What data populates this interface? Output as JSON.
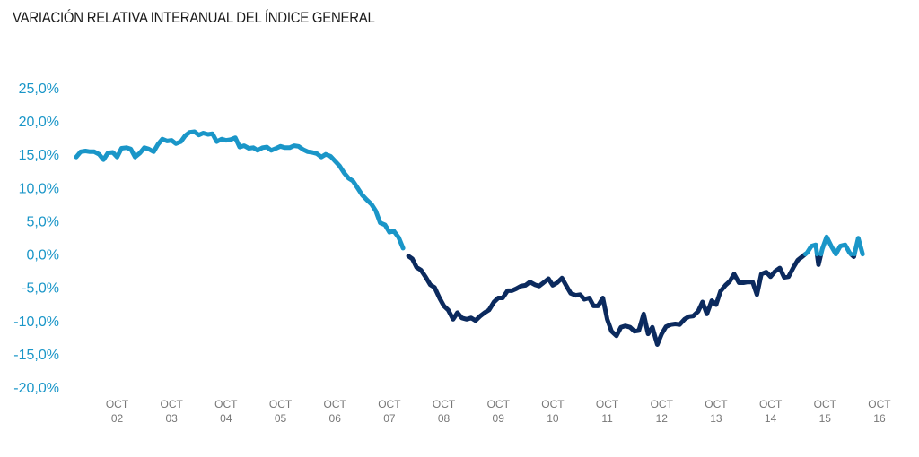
{
  "chart_data": {
    "type": "line",
    "title": "VARIACIÓN RELATIVA INTERANUAL DEL ÍNDICE GENERAL",
    "xlabel": "",
    "ylabel": "",
    "ylim": [
      -20,
      25
    ],
    "y_ticks": [
      25,
      20,
      15,
      10,
      5,
      0,
      -5,
      -10,
      -15,
      -20
    ],
    "y_tick_labels": [
      "25,0%",
      "20,0%",
      "15,0%",
      "10,0%",
      "5,0%",
      "0,0%",
      "-5,0%",
      "-10,0%",
      "-15,0%",
      "-20,0%"
    ],
    "x_ticks": [
      {
        "month": "OCT",
        "year": "02",
        "x": 2002.75
      },
      {
        "month": "OCT",
        "year": "03",
        "x": 2003.75
      },
      {
        "month": "OCT",
        "year": "04",
        "x": 2004.75
      },
      {
        "month": "OCT",
        "year": "05",
        "x": 2005.75
      },
      {
        "month": "OCT",
        "year": "06",
        "x": 2006.75
      },
      {
        "month": "OCT",
        "year": "07",
        "x": 2007.75
      },
      {
        "month": "OCT",
        "year": "08",
        "x": 2008.75
      },
      {
        "month": "OCT",
        "year": "09",
        "x": 2009.75
      },
      {
        "month": "OCT",
        "year": "10",
        "x": 2010.75
      },
      {
        "month": "OCT",
        "year": "11",
        "x": 2011.75
      },
      {
        "month": "OCT",
        "year": "12",
        "x": 2012.75
      },
      {
        "month": "OCT",
        "year": "13",
        "x": 2013.75
      },
      {
        "month": "OCT",
        "year": "14",
        "x": 2014.75
      },
      {
        "month": "OCT",
        "year": "15",
        "x": 2015.75
      },
      {
        "month": "OCT",
        "year": "16",
        "x": 2016.75
      }
    ],
    "xlim": [
      2002.0,
      2016.8
    ],
    "zero_line": true,
    "colors": {
      "positive": "#1a96c8",
      "negative": "#0b2a5e",
      "tick_text": "#1a96c8",
      "axis_text": "#777777",
      "zero_line": "#999999"
    },
    "series": [
      {
        "values": [
          [
            2002.0,
            14.6
          ],
          [
            2002.08,
            15.4
          ],
          [
            2002.17,
            15.5
          ],
          [
            2002.25,
            15.4
          ],
          [
            2002.33,
            15.4
          ],
          [
            2002.42,
            15.0
          ],
          [
            2002.5,
            14.2
          ],
          [
            2002.58,
            15.2
          ],
          [
            2002.67,
            15.3
          ],
          [
            2002.75,
            14.6
          ],
          [
            2002.83,
            15.9
          ],
          [
            2002.92,
            16.0
          ],
          [
            2003.0,
            15.8
          ],
          [
            2003.08,
            14.6
          ],
          [
            2003.17,
            15.2
          ],
          [
            2003.25,
            16.0
          ],
          [
            2003.33,
            15.8
          ],
          [
            2003.42,
            15.4
          ],
          [
            2003.5,
            16.5
          ],
          [
            2003.58,
            17.3
          ],
          [
            2003.67,
            17.0
          ],
          [
            2003.75,
            17.1
          ],
          [
            2003.83,
            16.6
          ],
          [
            2003.92,
            16.9
          ],
          [
            2004.0,
            17.8
          ],
          [
            2004.08,
            18.3
          ],
          [
            2004.17,
            18.4
          ],
          [
            2004.25,
            17.9
          ],
          [
            2004.33,
            18.2
          ],
          [
            2004.42,
            18.0
          ],
          [
            2004.5,
            18.1
          ],
          [
            2004.58,
            16.9
          ],
          [
            2004.67,
            17.3
          ],
          [
            2004.75,
            17.1
          ],
          [
            2004.83,
            17.2
          ],
          [
            2004.92,
            17.5
          ],
          [
            2005.0,
            16.1
          ],
          [
            2005.08,
            16.3
          ],
          [
            2005.17,
            15.9
          ],
          [
            2005.25,
            16.0
          ],
          [
            2005.33,
            15.6
          ],
          [
            2005.42,
            16.0
          ],
          [
            2005.5,
            16.1
          ],
          [
            2005.58,
            15.6
          ],
          [
            2005.67,
            15.9
          ],
          [
            2005.75,
            16.2
          ],
          [
            2005.83,
            16.0
          ],
          [
            2005.92,
            16.0
          ],
          [
            2006.0,
            16.3
          ],
          [
            2006.08,
            16.2
          ],
          [
            2006.17,
            15.7
          ],
          [
            2006.25,
            15.4
          ],
          [
            2006.33,
            15.3
          ],
          [
            2006.42,
            15.1
          ],
          [
            2006.5,
            14.6
          ],
          [
            2006.58,
            15.0
          ],
          [
            2006.67,
            14.7
          ],
          [
            2006.75,
            14.0
          ],
          [
            2006.83,
            13.3
          ],
          [
            2006.92,
            12.2
          ],
          [
            2007.0,
            11.4
          ],
          [
            2007.08,
            11.0
          ],
          [
            2007.17,
            9.9
          ],
          [
            2007.25,
            8.9
          ],
          [
            2007.33,
            8.2
          ],
          [
            2007.42,
            7.5
          ],
          [
            2007.5,
            6.5
          ],
          [
            2007.58,
            4.7
          ],
          [
            2007.67,
            4.4
          ],
          [
            2007.75,
            3.3
          ],
          [
            2007.83,
            3.5
          ],
          [
            2007.92,
            2.5
          ],
          [
            2008.0,
            0.9
          ]
        ]
      },
      {
        "values": [
          [
            2008.1,
            -0.3
          ],
          [
            2008.17,
            -0.7
          ],
          [
            2008.25,
            -2.0
          ],
          [
            2008.33,
            -2.4
          ],
          [
            2008.42,
            -3.5
          ],
          [
            2008.5,
            -4.6
          ],
          [
            2008.58,
            -5.0
          ],
          [
            2008.67,
            -6.6
          ],
          [
            2008.75,
            -7.8
          ],
          [
            2008.83,
            -8.4
          ],
          [
            2008.92,
            -9.8
          ],
          [
            2009.0,
            -8.8
          ],
          [
            2009.08,
            -9.6
          ],
          [
            2009.17,
            -9.8
          ],
          [
            2009.25,
            -9.6
          ],
          [
            2009.33,
            -10.0
          ],
          [
            2009.42,
            -9.3
          ],
          [
            2009.5,
            -8.8
          ],
          [
            2009.58,
            -8.4
          ],
          [
            2009.67,
            -7.2
          ],
          [
            2009.75,
            -6.6
          ],
          [
            2009.83,
            -6.6
          ],
          [
            2009.92,
            -5.5
          ],
          [
            2010.0,
            -5.5
          ],
          [
            2010.08,
            -5.2
          ],
          [
            2010.17,
            -4.8
          ],
          [
            2010.25,
            -4.7
          ],
          [
            2010.33,
            -4.2
          ],
          [
            2010.42,
            -4.6
          ],
          [
            2010.5,
            -4.8
          ],
          [
            2010.58,
            -4.3
          ],
          [
            2010.67,
            -3.7
          ],
          [
            2010.75,
            -4.7
          ],
          [
            2010.83,
            -4.3
          ],
          [
            2010.92,
            -3.6
          ],
          [
            2011.0,
            -4.8
          ],
          [
            2011.08,
            -5.9
          ],
          [
            2011.17,
            -6.2
          ],
          [
            2011.25,
            -6.1
          ],
          [
            2011.33,
            -6.8
          ],
          [
            2011.42,
            -6.6
          ],
          [
            2011.5,
            -7.8
          ],
          [
            2011.58,
            -7.8
          ],
          [
            2011.67,
            -6.6
          ],
          [
            2011.75,
            -9.8
          ],
          [
            2011.83,
            -11.6
          ],
          [
            2011.92,
            -12.3
          ],
          [
            2012.0,
            -11.0
          ],
          [
            2012.08,
            -10.8
          ],
          [
            2012.17,
            -11.0
          ],
          [
            2012.25,
            -11.6
          ],
          [
            2012.33,
            -11.5
          ],
          [
            2012.42,
            -9.0
          ],
          [
            2012.5,
            -12.0
          ],
          [
            2012.58,
            -11.0
          ],
          [
            2012.67,
            -13.6
          ],
          [
            2012.75,
            -12.0
          ],
          [
            2012.83,
            -10.9
          ],
          [
            2012.92,
            -10.6
          ],
          [
            2013.0,
            -10.5
          ],
          [
            2013.08,
            -10.6
          ],
          [
            2013.17,
            -9.8
          ],
          [
            2013.25,
            -9.4
          ],
          [
            2013.33,
            -9.3
          ],
          [
            2013.42,
            -8.6
          ],
          [
            2013.5,
            -7.2
          ],
          [
            2013.58,
            -9.0
          ],
          [
            2013.67,
            -7.0
          ],
          [
            2013.75,
            -7.6
          ],
          [
            2013.83,
            -5.6
          ],
          [
            2013.92,
            -4.7
          ],
          [
            2014.0,
            -4.1
          ],
          [
            2014.08,
            -3.0
          ],
          [
            2014.17,
            -4.3
          ],
          [
            2014.25,
            -4.3
          ],
          [
            2014.33,
            -4.2
          ],
          [
            2014.42,
            -4.2
          ],
          [
            2014.5,
            -6.1
          ],
          [
            2014.58,
            -3.0
          ],
          [
            2014.67,
            -2.7
          ],
          [
            2014.75,
            -3.4
          ],
          [
            2014.83,
            -2.6
          ],
          [
            2014.92,
            -2.1
          ],
          [
            2015.0,
            -3.5
          ],
          [
            2015.08,
            -3.4
          ],
          [
            2015.17,
            -2.0
          ],
          [
            2015.25,
            -0.9
          ],
          [
            2015.33,
            -0.4
          ],
          [
            2015.42,
            0.2
          ],
          [
            2015.5,
            1.2
          ],
          [
            2015.58,
            1.4
          ],
          [
            2015.63,
            -1.6
          ],
          [
            2015.7,
            0.8
          ],
          [
            2015.78,
            2.6
          ],
          [
            2015.87,
            1.1
          ],
          [
            2015.95,
            0.0
          ],
          [
            2016.03,
            1.2
          ],
          [
            2016.12,
            1.4
          ],
          [
            2016.2,
            0.2
          ],
          [
            2016.28,
            -0.4
          ],
          [
            2016.36,
            2.4
          ],
          [
            2016.44,
            0.0
          ]
        ]
      }
    ]
  }
}
